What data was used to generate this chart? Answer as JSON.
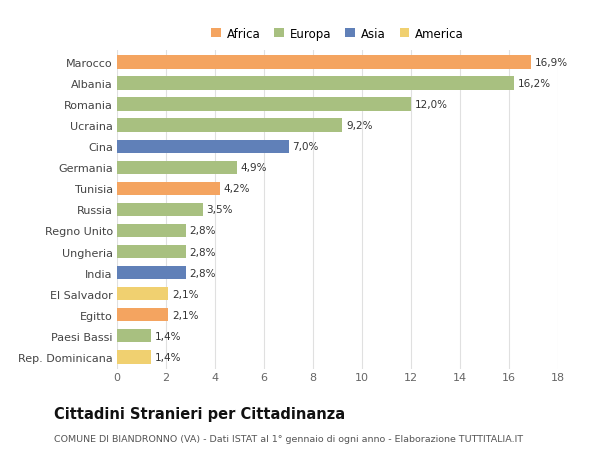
{
  "categories": [
    "Rep. Dominicana",
    "Paesi Bassi",
    "Egitto",
    "El Salvador",
    "India",
    "Ungheria",
    "Regno Unito",
    "Russia",
    "Tunisia",
    "Germania",
    "Cina",
    "Ucraina",
    "Romania",
    "Albania",
    "Marocco"
  ],
  "values": [
    1.4,
    1.4,
    2.1,
    2.1,
    2.8,
    2.8,
    2.8,
    3.5,
    4.2,
    4.9,
    7.0,
    9.2,
    12.0,
    16.2,
    16.9
  ],
  "bar_colors": [
    "#F0D070",
    "#A8C080",
    "#F4A460",
    "#F0D070",
    "#6080B8",
    "#A8C080",
    "#A8C080",
    "#A8C080",
    "#F4A460",
    "#A8C080",
    "#6080B8",
    "#A8C080",
    "#A8C080",
    "#A8C080",
    "#F4A460"
  ],
  "labels": [
    "1,4%",
    "1,4%",
    "2,1%",
    "2,1%",
    "2,8%",
    "2,8%",
    "2,8%",
    "3,5%",
    "4,2%",
    "4,9%",
    "7,0%",
    "9,2%",
    "12,0%",
    "16,2%",
    "16,9%"
  ],
  "xlim": [
    0,
    18
  ],
  "xticks": [
    0,
    2,
    4,
    6,
    8,
    10,
    12,
    14,
    16,
    18
  ],
  "title": "Cittadini Stranieri per Cittadinanza",
  "subtitle": "COMUNE DI BIANDRONNO (VA) - Dati ISTAT al 1° gennaio di ogni anno - Elaborazione TUTTITALIA.IT",
  "legend_order": [
    "Africa",
    "Europa",
    "Asia",
    "America"
  ],
  "legend_colors": [
    "#F4A460",
    "#A8C080",
    "#6080B8",
    "#F0D070"
  ],
  "background_color": "#ffffff",
  "grid_color": "#e0e0e0",
  "bar_height": 0.65,
  "label_fontsize": 7.5,
  "ytick_fontsize": 8.0,
  "xtick_fontsize": 8.0,
  "legend_fontsize": 8.5,
  "title_fontsize": 10.5,
  "subtitle_fontsize": 6.8
}
